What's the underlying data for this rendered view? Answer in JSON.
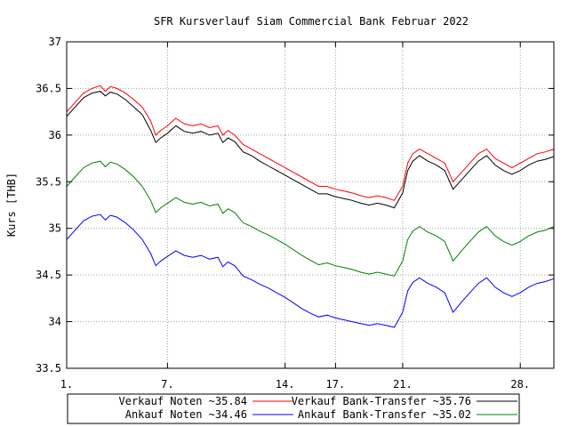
{
  "chart_data": {
    "type": "line",
    "title": "SFR Kursverlauf Siam Commercial Bank Februar 2022",
    "ylabel": "Kurs [THB]",
    "xlabel": "",
    "xlim": [
      1,
      30
    ],
    "ylim": [
      33.5,
      37
    ],
    "x_ticks": [
      1,
      7,
      14,
      17,
      21,
      28
    ],
    "x_tick_labels": [
      "1.",
      "7.",
      "14.",
      "17.",
      "21.",
      "28."
    ],
    "y_ticks": [
      33.5,
      34,
      34.5,
      35,
      35.5,
      36,
      36.5,
      37
    ],
    "y_tick_labels": [
      "33.5",
      "34",
      "34.5",
      "35",
      "35.5",
      "36",
      "36.5",
      "37"
    ],
    "grid": true,
    "legend_placement": "bottom",
    "legend_labels": [
      "Verkauf Noten ~35.84",
      "Verkauf Bank-Transfer ~35.76",
      "Ankauf Noten ~34.46",
      "Ankauf Bank-Transfer ~35.02"
    ],
    "series": [
      {
        "name": "Verkauf Noten ~35.84",
        "color": "#ff0000",
        "points": [
          [
            1,
            36.25
          ],
          [
            1.5,
            36.35
          ],
          [
            2,
            36.45
          ],
          [
            2.5,
            36.5
          ],
          [
            3,
            36.53
          ],
          [
            3.3,
            36.47
          ],
          [
            3.6,
            36.52
          ],
          [
            4,
            36.5
          ],
          [
            4.5,
            36.45
          ],
          [
            5,
            36.38
          ],
          [
            5.5,
            36.3
          ],
          [
            6,
            36.15
          ],
          [
            6.3,
            36.0
          ],
          [
            6.6,
            36.05
          ],
          [
            7,
            36.1
          ],
          [
            7.5,
            36.18
          ],
          [
            8,
            36.12
          ],
          [
            8.5,
            36.1
          ],
          [
            9,
            36.12
          ],
          [
            9.5,
            36.08
          ],
          [
            10,
            36.1
          ],
          [
            10.3,
            36.0
          ],
          [
            10.6,
            36.05
          ],
          [
            11,
            36.0
          ],
          [
            11.5,
            35.9
          ],
          [
            12,
            35.85
          ],
          [
            12.5,
            35.8
          ],
          [
            13,
            35.75
          ],
          [
            13.5,
            35.7
          ],
          [
            14,
            35.65
          ],
          [
            14.5,
            35.6
          ],
          [
            15,
            35.55
          ],
          [
            15.5,
            35.5
          ],
          [
            16,
            35.45
          ],
          [
            16.5,
            35.45
          ],
          [
            17,
            35.42
          ],
          [
            17.5,
            35.4
          ],
          [
            18,
            35.38
          ],
          [
            18.5,
            35.35
          ],
          [
            19,
            35.33
          ],
          [
            19.5,
            35.35
          ],
          [
            20,
            35.33
          ],
          [
            20.5,
            35.3
          ],
          [
            21,
            35.45
          ],
          [
            21.3,
            35.7
          ],
          [
            21.6,
            35.8
          ],
          [
            22,
            35.85
          ],
          [
            22.5,
            35.8
          ],
          [
            23,
            35.75
          ],
          [
            23.5,
            35.7
          ],
          [
            24,
            35.5
          ],
          [
            24.5,
            35.6
          ],
          [
            25,
            35.7
          ],
          [
            25.5,
            35.8
          ],
          [
            26,
            35.85
          ],
          [
            26.5,
            35.75
          ],
          [
            27,
            35.7
          ],
          [
            27.5,
            35.65
          ],
          [
            28,
            35.7
          ],
          [
            28.5,
            35.75
          ],
          [
            29,
            35.8
          ],
          [
            29.5,
            35.82
          ],
          [
            30,
            35.85
          ]
        ]
      },
      {
        "name": "Verkauf Bank-Transfer ~35.76",
        "color": "#000000",
        "points": [
          [
            1,
            36.2
          ],
          [
            1.5,
            36.3
          ],
          [
            2,
            36.4
          ],
          [
            2.5,
            36.45
          ],
          [
            3,
            36.47
          ],
          [
            3.3,
            36.42
          ],
          [
            3.6,
            36.46
          ],
          [
            4,
            36.44
          ],
          [
            4.5,
            36.38
          ],
          [
            5,
            36.3
          ],
          [
            5.5,
            36.22
          ],
          [
            6,
            36.05
          ],
          [
            6.3,
            35.92
          ],
          [
            6.6,
            35.97
          ],
          [
            7,
            36.02
          ],
          [
            7.5,
            36.1
          ],
          [
            8,
            36.04
          ],
          [
            8.5,
            36.02
          ],
          [
            9,
            36.04
          ],
          [
            9.5,
            36.0
          ],
          [
            10,
            36.02
          ],
          [
            10.3,
            35.92
          ],
          [
            10.6,
            35.97
          ],
          [
            11,
            35.93
          ],
          [
            11.5,
            35.82
          ],
          [
            12,
            35.78
          ],
          [
            12.5,
            35.72
          ],
          [
            13,
            35.67
          ],
          [
            13.5,
            35.62
          ],
          [
            14,
            35.57
          ],
          [
            14.5,
            35.52
          ],
          [
            15,
            35.47
          ],
          [
            15.5,
            35.42
          ],
          [
            16,
            35.37
          ],
          [
            16.5,
            35.37
          ],
          [
            17,
            35.34
          ],
          [
            17.5,
            35.32
          ],
          [
            18,
            35.3
          ],
          [
            18.5,
            35.27
          ],
          [
            19,
            35.25
          ],
          [
            19.5,
            35.27
          ],
          [
            20,
            35.25
          ],
          [
            20.5,
            35.22
          ],
          [
            21,
            35.38
          ],
          [
            21.3,
            35.62
          ],
          [
            21.6,
            35.72
          ],
          [
            22,
            35.78
          ],
          [
            22.5,
            35.72
          ],
          [
            23,
            35.68
          ],
          [
            23.5,
            35.62
          ],
          [
            24,
            35.42
          ],
          [
            24.5,
            35.52
          ],
          [
            25,
            35.62
          ],
          [
            25.5,
            35.72
          ],
          [
            26,
            35.78
          ],
          [
            26.5,
            35.68
          ],
          [
            27,
            35.62
          ],
          [
            27.5,
            35.58
          ],
          [
            28,
            35.62
          ],
          [
            28.5,
            35.68
          ],
          [
            29,
            35.72
          ],
          [
            29.5,
            35.74
          ],
          [
            30,
            35.77
          ]
        ]
      },
      {
        "name": "Ankauf Bank-Transfer ~35.02",
        "color": "#008000",
        "points": [
          [
            1,
            35.45
          ],
          [
            1.5,
            35.55
          ],
          [
            2,
            35.65
          ],
          [
            2.5,
            35.7
          ],
          [
            3,
            35.72
          ],
          [
            3.3,
            35.66
          ],
          [
            3.6,
            35.71
          ],
          [
            4,
            35.69
          ],
          [
            4.5,
            35.63
          ],
          [
            5,
            35.55
          ],
          [
            5.5,
            35.45
          ],
          [
            6,
            35.3
          ],
          [
            6.3,
            35.17
          ],
          [
            6.6,
            35.22
          ],
          [
            7,
            35.27
          ],
          [
            7.5,
            35.33
          ],
          [
            8,
            35.28
          ],
          [
            8.5,
            35.26
          ],
          [
            9,
            35.28
          ],
          [
            9.5,
            35.24
          ],
          [
            10,
            35.26
          ],
          [
            10.3,
            35.16
          ],
          [
            10.6,
            35.21
          ],
          [
            11,
            35.17
          ],
          [
            11.5,
            35.06
          ],
          [
            12,
            35.02
          ],
          [
            12.5,
            34.97
          ],
          [
            13,
            34.93
          ],
          [
            13.5,
            34.88
          ],
          [
            14,
            34.83
          ],
          [
            14.5,
            34.77
          ],
          [
            15,
            34.71
          ],
          [
            15.5,
            34.66
          ],
          [
            16,
            34.61
          ],
          [
            16.5,
            34.63
          ],
          [
            17,
            34.6
          ],
          [
            17.5,
            34.58
          ],
          [
            18,
            34.56
          ],
          [
            18.5,
            34.53
          ],
          [
            19,
            34.51
          ],
          [
            19.5,
            34.53
          ],
          [
            20,
            34.51
          ],
          [
            20.5,
            34.49
          ],
          [
            21,
            34.65
          ],
          [
            21.3,
            34.88
          ],
          [
            21.6,
            34.97
          ],
          [
            22,
            35.02
          ],
          [
            22.5,
            34.96
          ],
          [
            23,
            34.92
          ],
          [
            23.5,
            34.86
          ],
          [
            24,
            34.65
          ],
          [
            24.5,
            34.76
          ],
          [
            25,
            34.86
          ],
          [
            25.5,
            34.96
          ],
          [
            26,
            35.02
          ],
          [
            26.5,
            34.92
          ],
          [
            27,
            34.86
          ],
          [
            27.5,
            34.82
          ],
          [
            28,
            34.86
          ],
          [
            28.5,
            34.92
          ],
          [
            29,
            34.96
          ],
          [
            29.5,
            34.98
          ],
          [
            30,
            35.02
          ]
        ]
      },
      {
        "name": "Ankauf Noten ~34.46",
        "color": "#0000ff",
        "points": [
          [
            1,
            34.88
          ],
          [
            1.5,
            34.98
          ],
          [
            2,
            35.08
          ],
          [
            2.5,
            35.13
          ],
          [
            3,
            35.15
          ],
          [
            3.3,
            35.09
          ],
          [
            3.6,
            35.14
          ],
          [
            4,
            35.12
          ],
          [
            4.5,
            35.06
          ],
          [
            5,
            34.98
          ],
          [
            5.5,
            34.88
          ],
          [
            6,
            34.73
          ],
          [
            6.3,
            34.6
          ],
          [
            6.6,
            34.65
          ],
          [
            7,
            34.7
          ],
          [
            7.5,
            34.76
          ],
          [
            8,
            34.71
          ],
          [
            8.5,
            34.69
          ],
          [
            9,
            34.71
          ],
          [
            9.5,
            34.67
          ],
          [
            10,
            34.69
          ],
          [
            10.3,
            34.59
          ],
          [
            10.6,
            34.64
          ],
          [
            11,
            34.6
          ],
          [
            11.5,
            34.49
          ],
          [
            12,
            34.45
          ],
          [
            12.5,
            34.4
          ],
          [
            13,
            34.36
          ],
          [
            13.5,
            34.31
          ],
          [
            14,
            34.26
          ],
          [
            14.5,
            34.2
          ],
          [
            15,
            34.14
          ],
          [
            15.5,
            34.09
          ],
          [
            16,
            34.05
          ],
          [
            16.5,
            34.07
          ],
          [
            17,
            34.04
          ],
          [
            17.5,
            34.02
          ],
          [
            18,
            34.0
          ],
          [
            18.5,
            33.98
          ],
          [
            19,
            33.96
          ],
          [
            19.5,
            33.98
          ],
          [
            20,
            33.96
          ],
          [
            20.5,
            33.94
          ],
          [
            21,
            34.1
          ],
          [
            21.3,
            34.33
          ],
          [
            21.6,
            34.42
          ],
          [
            22,
            34.47
          ],
          [
            22.5,
            34.41
          ],
          [
            23,
            34.37
          ],
          [
            23.5,
            34.31
          ],
          [
            24,
            34.1
          ],
          [
            24.5,
            34.21
          ],
          [
            25,
            34.31
          ],
          [
            25.5,
            34.41
          ],
          [
            26,
            34.47
          ],
          [
            26.5,
            34.37
          ],
          [
            27,
            34.31
          ],
          [
            27.5,
            34.27
          ],
          [
            28,
            34.31
          ],
          [
            28.5,
            34.37
          ],
          [
            29,
            34.41
          ],
          [
            29.5,
            34.43
          ],
          [
            30,
            34.46
          ]
        ]
      }
    ]
  }
}
